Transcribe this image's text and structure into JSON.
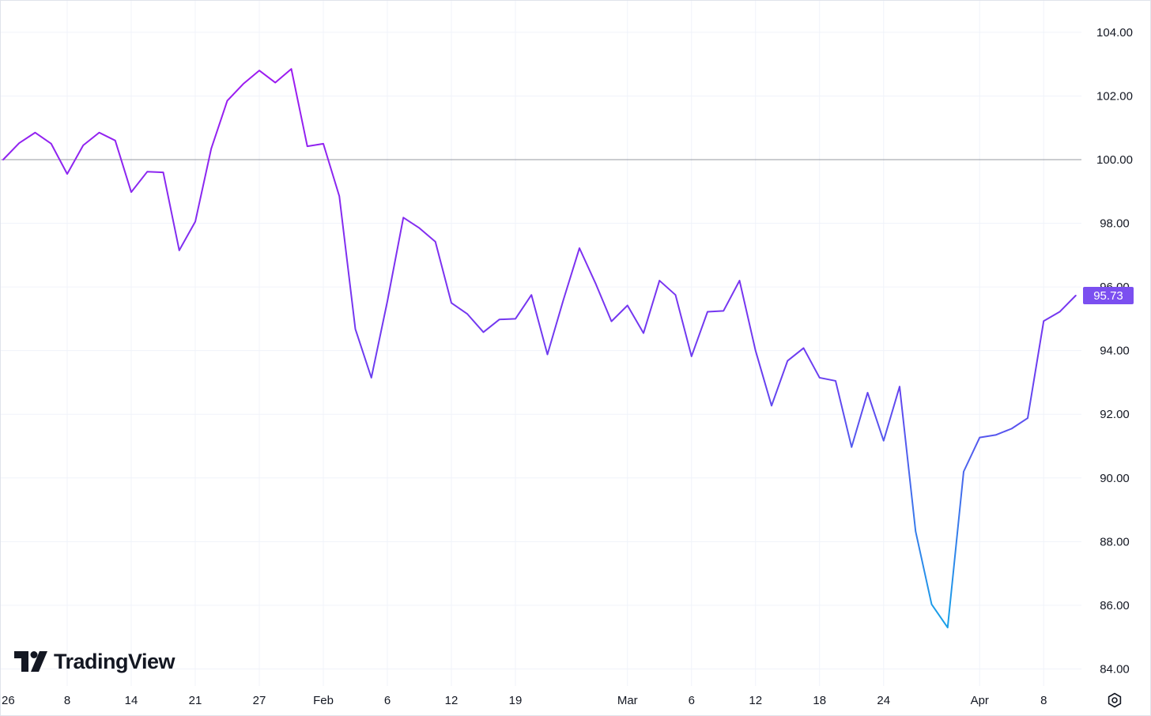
{
  "brand": {
    "logo_text": "TradingView"
  },
  "controls": {
    "settings_icon": "settings-gear-icon"
  },
  "colors": {
    "line_start": "#9c1bf0",
    "line_mid": "#6a3ff0",
    "line_end": "#1a9fe8",
    "baseline": "#9598a1",
    "last_value_label_bg": "#7b4ff0",
    "grid": "#f0f3fa"
  },
  "chart_data": {
    "type": "line",
    "title": "",
    "xlabel": "",
    "ylabel": "",
    "ylim": [
      83.5,
      104.8
    ],
    "y_ticks": [
      "104.00",
      "102.00",
      "100.00",
      "98.00",
      "96.00",
      "94.00",
      "92.00",
      "90.00",
      "88.00",
      "86.00",
      "84.00"
    ],
    "x_ticks": [
      {
        "label": "26",
        "i": 0
      },
      {
        "label": "8",
        "i": 4
      },
      {
        "label": "14",
        "i": 8
      },
      {
        "label": "21",
        "i": 12
      },
      {
        "label": "27",
        "i": 16
      },
      {
        "label": "Feb",
        "i": 20
      },
      {
        "label": "6",
        "i": 24
      },
      {
        "label": "12",
        "i": 28
      },
      {
        "label": "19",
        "i": 32
      },
      {
        "label": "Mar",
        "i": 39
      },
      {
        "label": "6",
        "i": 43
      },
      {
        "label": "12",
        "i": 47
      },
      {
        "label": "18",
        "i": 51
      },
      {
        "label": "24",
        "i": 55
      },
      {
        "label": "Apr",
        "i": 61
      },
      {
        "label": "8",
        "i": 65
      }
    ],
    "baseline_value": 100.0,
    "last_value_label": "95.73",
    "grid": true,
    "series": [
      {
        "values": [
          100.0,
          100.52,
          100.85,
          100.5,
          99.55,
          100.45,
          100.85,
          100.6,
          98.98,
          99.62,
          99.6,
          97.15,
          98.05,
          100.35,
          101.85,
          102.38,
          102.8,
          102.42,
          102.85,
          100.42,
          100.5,
          98.85,
          94.68,
          93.15,
          95.55,
          98.18,
          97.85,
          97.42,
          95.5,
          95.15,
          94.58,
          94.98,
          95.0,
          95.75,
          93.88,
          95.6,
          97.22,
          96.12,
          94.92,
          95.42,
          94.55,
          96.2,
          95.75,
          93.82,
          95.22,
          95.25,
          96.2,
          94.0,
          92.27,
          93.68,
          94.08,
          93.15,
          93.05,
          90.97,
          92.68,
          91.17,
          92.87,
          88.32,
          86.03,
          85.3,
          90.2,
          91.27,
          91.35,
          91.55,
          91.88,
          94.93,
          95.22,
          95.73
        ]
      }
    ]
  }
}
